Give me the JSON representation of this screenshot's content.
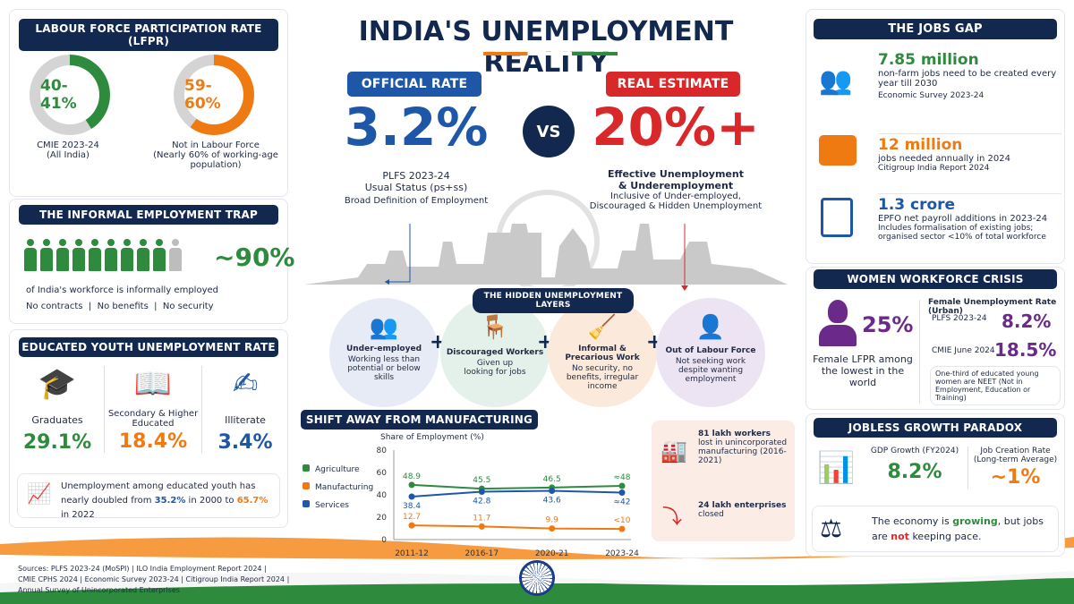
{
  "title": "INDIA'S UNEMPLOYMENT REALITY",
  "lfpr": {
    "header": "LABOUR FORCE PARTICIPATION RATE (LFPR)",
    "left": {
      "value": "40-41%",
      "fraction": 0.41,
      "label": "CMIE 2023-24",
      "sub": "(All India)"
    },
    "right": {
      "value": "59-60%",
      "fraction": 0.6,
      "label": "Not in Labour Force",
      "sub": "(Nearly 60% of working-age population)"
    }
  },
  "informal": {
    "header": "THE INFORMAL EMPLOYMENT TRAP",
    "value": "~90%",
    "filled_people": 9,
    "total_people": 10,
    "line1": "of India's workforce is informally employed",
    "line2": "No contracts  |  No benefits  |  No security"
  },
  "youth": {
    "header": "EDUCATED YOUTH UNEMPLOYMENT RATE",
    "items": [
      {
        "label": "Graduates",
        "value": "29.1%"
      },
      {
        "label": "Secondary & Higher Educated",
        "value": "18.4%"
      },
      {
        "label": "Illiterate",
        "value": "3.4%"
      }
    ],
    "note_pre": "Unemployment among educated youth has nearly doubled from ",
    "note_a": "35.2%",
    "note_mid": " in 2000 to ",
    "note_b": "65.7%",
    "note_post": " in 2022"
  },
  "official": {
    "label": "OFFICIAL RATE",
    "value": "3.2%",
    "l1": "PLFS 2023-24",
    "l2": "Usual Status (ps+ss)",
    "l3": "Broad Definition of Employment"
  },
  "vs": "VS",
  "real": {
    "label": "REAL ESTIMATE",
    "value": "20%+",
    "l1": "Effective Unemployment",
    "l2": "& Underemployment",
    "l3": "Inclusive of Under-employed,",
    "l4": "Discouraged & Hidden Unemployment"
  },
  "hidden": {
    "header": "THE HIDDEN UNEMPLOYMENT LAYERS",
    "items": [
      {
        "title": "Under-employed",
        "desc": "Working less than potential or below skills"
      },
      {
        "title": "Discouraged Workers",
        "desc": "Given up looking for jobs"
      },
      {
        "title": "Informal & Precarious Work",
        "desc": "No security, no benefits, irregular income"
      },
      {
        "title": "Out of Labour Force",
        "desc": "Not seeking work despite wanting employment"
      }
    ]
  },
  "chart_data": {
    "type": "line",
    "title": "SHIFT AWAY FROM MANUFACTURING",
    "ylabel": "Share of Employment (%)",
    "ylim": [
      0,
      80
    ],
    "yticks": [
      0,
      20,
      40,
      60,
      80
    ],
    "categories": [
      "2011-12",
      "2016-17",
      "2020-21",
      "2023-24"
    ],
    "legend": "left",
    "series": [
      {
        "name": "Agriculture",
        "color": "#2e8b3d",
        "values": [
          48.9,
          45.5,
          46.5,
          48
        ],
        "labels": [
          "48.9",
          "45.5",
          "46.5",
          "≈48"
        ]
      },
      {
        "name": "Manufacturing",
        "color": "#f07a12",
        "values": [
          12.7,
          11.7,
          9.9,
          9.5
        ],
        "labels": [
          "12.7",
          "11.7",
          "9.9",
          "<10"
        ]
      },
      {
        "name": "Services",
        "color": "#1e56a8",
        "values": [
          38.4,
          42.8,
          43.6,
          42
        ],
        "labels": [
          "38.4",
          "42.8",
          "43.6",
          "≈42"
        ]
      }
    ]
  },
  "mfg": {
    "a": "81 lakh workers",
    "a2": "lost in unincorporated manufacturing (2016-2021)",
    "b": "24 lakh enterprises",
    "b2": "closed"
  },
  "jobs": {
    "header": "THE JOBS GAP",
    "items": [
      {
        "value": "7.85 million",
        "desc": "non-farm jobs need to be created every year till 2030",
        "src": "Economic Survey 2023-24"
      },
      {
        "value": "12 million",
        "desc": "jobs needed annually in 2024",
        "src": "Citigroup India Report 2024"
      },
      {
        "value": "1.3 crore",
        "desc": "EPFO net payroll additions in 2023-24",
        "src": "Includes formalisation of existing jobs; organised sector <10% of total workforce"
      }
    ]
  },
  "women": {
    "header": "WOMEN WORKFORCE CRISIS",
    "value": "25%",
    "desc": "Female LFPR among the lowest in the world",
    "rate_title": "Female Unemployment Rate (Urban)",
    "r1_label": "PLFS 2023-24",
    "r1_value": "8.2%",
    "r2_label": "CMIE June 2024",
    "r2_value": "18.5%",
    "note": "One-third of educated young women are NEET (Not in Employment, Education or Training)"
  },
  "jobless": {
    "header": "JOBLESS GROWTH PARADOX",
    "gdp_label": "GDP Growth (FY2024)",
    "gdp_value": "8.2%",
    "job_label": "Job Creation Rate (Long-term Average)",
    "job_value": "~1%",
    "m_pre": "The economy is ",
    "m_g": "growing",
    "m_mid": ", but jobs are ",
    "m_n": "not",
    "m_post": " keeping pace."
  },
  "sources": [
    "Sources: PLFS 2023-24 (MoSPI) | ILO India Employment Report 2024 |",
    "CMIE CPHS 2024 | Economic Survey 2023-24 | Citigroup India Report 2024 |",
    "Annual Survey of Unincorporated Enterprises"
  ],
  "colors": {
    "navy": "#13284f",
    "green": "#2e8b3d",
    "orange": "#f07a12",
    "blue": "#1e56a8",
    "red": "#d8282a",
    "purple": "#6a2a8a"
  }
}
